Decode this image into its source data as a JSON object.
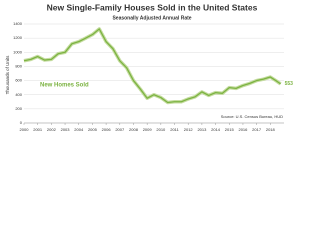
{
  "chart_data": {
    "type": "line",
    "title": "New Single-Family Houses Sold in the United States",
    "subtitle": "Seasonally Adjusted Annual Rate",
    "y_label": "Thousands of Units",
    "source": "Source: U.S. Census Bureau, HUD",
    "annotation": "New Homes Sold",
    "x": [
      2000,
      2000.5,
      2001,
      2001.5,
      2002,
      2002.5,
      2003,
      2003.5,
      2004,
      2004.5,
      2005,
      2005.5,
      2006,
      2006.5,
      2007,
      2007.5,
      2008,
      2008.5,
      2009,
      2009.5,
      2010,
      2010.5,
      2011,
      2011.5,
      2012,
      2012.5,
      2013,
      2013.5,
      2014,
      2014.5,
      2015,
      2015.5,
      2016,
      2016.5,
      2017,
      2017.5,
      2018,
      2018.4,
      2018.75
    ],
    "series": [
      {
        "name": "New Homes Sold",
        "color": "#7cb342",
        "values": [
          880,
          900,
          940,
          890,
          900,
          980,
          1000,
          1120,
          1150,
          1200,
          1250,
          1330,
          1150,
          1050,
          880,
          780,
          600,
          480,
          350,
          400,
          360,
          290,
          300,
          300,
          340,
          370,
          440,
          390,
          430,
          420,
          500,
          490,
          530,
          560,
          600,
          620,
          650,
          600,
          553
        ]
      }
    ],
    "xlim": [
      2000,
      2019
    ],
    "xticks": [
      2000,
      2001,
      2002,
      2003,
      2004,
      2005,
      2006,
      2007,
      2008,
      2009,
      2010,
      2011,
      2012,
      2013,
      2014,
      2015,
      2016,
      2017,
      2018
    ],
    "ylim": [
      0,
      1400
    ],
    "yticks": [
      0,
      200,
      400,
      600,
      800,
      1000,
      1200,
      1400
    ],
    "grid": true
  }
}
